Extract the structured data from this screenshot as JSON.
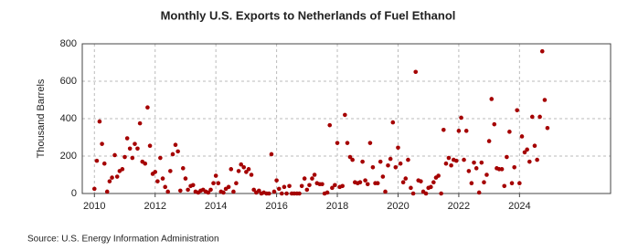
{
  "chart_data": {
    "type": "scatter",
    "title": "Monthly U.S. Exports to Netherlands of Fuel Ethanol",
    "y_label": "Thousand Barrels",
    "source": "Source: U.S. Energy Information Administration",
    "color": "#a50000",
    "xlim": [
      2009.6,
      2027
    ],
    "xticks": [
      2010,
      2012,
      2014,
      2016,
      2018,
      2020,
      2022,
      2024
    ],
    "ylim": [
      0,
      800
    ],
    "yticks": [
      0,
      200,
      400,
      600,
      800
    ],
    "grid": true,
    "x": [
      2010,
      2010.08,
      2010.17,
      2010.25,
      2010.33,
      2010.42,
      2010.5,
      2010.58,
      2010.67,
      2010.75,
      2010.83,
      2010.92,
      2011,
      2011.08,
      2011.17,
      2011.25,
      2011.33,
      2011.42,
      2011.5,
      2011.58,
      2011.67,
      2011.75,
      2011.83,
      2011.92,
      2012,
      2012.08,
      2012.17,
      2012.25,
      2012.33,
      2012.42,
      2012.5,
      2012.58,
      2012.67,
      2012.75,
      2012.83,
      2012.92,
      2013,
      2013.08,
      2013.17,
      2013.25,
      2013.33,
      2013.42,
      2013.5,
      2013.58,
      2013.67,
      2013.75,
      2013.83,
      2013.92,
      2014,
      2014.08,
      2014.17,
      2014.25,
      2014.33,
      2014.42,
      2014.5,
      2014.58,
      2014.67,
      2014.75,
      2014.83,
      2014.92,
      2015,
      2015.08,
      2015.17,
      2015.25,
      2015.33,
      2015.42,
      2015.5,
      2015.58,
      2015.67,
      2015.75,
      2015.83,
      2015.92,
      2016,
      2016.08,
      2016.17,
      2016.25,
      2016.33,
      2016.42,
      2016.5,
      2016.58,
      2016.67,
      2016.75,
      2016.83,
      2016.92,
      2017,
      2017.08,
      2017.17,
      2017.25,
      2017.33,
      2017.42,
      2017.5,
      2017.58,
      2017.67,
      2017.75,
      2017.83,
      2017.92,
      2018,
      2018.08,
      2018.17,
      2018.25,
      2018.33,
      2018.42,
      2018.5,
      2018.58,
      2018.67,
      2018.75,
      2018.83,
      2018.92,
      2019,
      2019.08,
      2019.17,
      2019.25,
      2019.33,
      2019.42,
      2019.5,
      2019.58,
      2019.67,
      2019.75,
      2019.83,
      2019.92,
      2020,
      2020.08,
      2020.17,
      2020.25,
      2020.33,
      2020.42,
      2020.5,
      2020.58,
      2020.67,
      2020.75,
      2020.83,
      2020.92,
      2021,
      2021.08,
      2021.17,
      2021.25,
      2021.33,
      2021.42,
      2021.5,
      2021.58,
      2021.67,
      2021.75,
      2021.83,
      2021.92,
      2022,
      2022.08,
      2022.17,
      2022.25,
      2022.33,
      2022.42,
      2022.5,
      2022.58,
      2022.67,
      2022.75,
      2022.83,
      2022.92,
      2023,
      2023.08,
      2023.17,
      2023.25,
      2023.33,
      2023.42,
      2023.5,
      2023.58,
      2023.67,
      2023.75,
      2023.83,
      2023.92,
      2024,
      2024.08,
      2024.17,
      2024.25,
      2024.33,
      2024.42,
      2024.5,
      2024.58,
      2024.67,
      2024.75,
      2024.83,
      2024.92
    ],
    "values": [
      25,
      175,
      385,
      265,
      160,
      10,
      65,
      85,
      205,
      90,
      120,
      130,
      195,
      295,
      240,
      190,
      265,
      240,
      375,
      170,
      160,
      460,
      255,
      105,
      115,
      65,
      190,
      80,
      35,
      10,
      120,
      210,
      260,
      225,
      15,
      135,
      80,
      20,
      40,
      45,
      10,
      5,
      15,
      20,
      10,
      5,
      20,
      55,
      95,
      55,
      10,
      5,
      25,
      35,
      130,
      10,
      55,
      120,
      155,
      140,
      115,
      130,
      100,
      20,
      5,
      15,
      0,
      5,
      0,
      0,
      210,
      10,
      70,
      25,
      0,
      35,
      0,
      40,
      0,
      0,
      0,
      0,
      40,
      80,
      20,
      45,
      80,
      100,
      55,
      50,
      50,
      0,
      5,
      365,
      30,
      45,
      270,
      35,
      40,
      420,
      270,
      195,
      180,
      60,
      55,
      60,
      170,
      70,
      50,
      270,
      140,
      55,
      55,
      170,
      90,
      10,
      150,
      185,
      380,
      140,
      245,
      160,
      60,
      80,
      180,
      30,
      0,
      650,
      70,
      65,
      10,
      0,
      30,
      35,
      60,
      85,
      95,
      0,
      340,
      160,
      190,
      150,
      180,
      175,
      335,
      405,
      180,
      335,
      120,
      55,
      165,
      135,
      5,
      165,
      60,
      100,
      280,
      505,
      370,
      135,
      130,
      130,
      40,
      195,
      330,
      55,
      140,
      445,
      55,
      305,
      220,
      235,
      170,
      410,
      255,
      180,
      410,
      760,
      500,
      350
    ]
  }
}
